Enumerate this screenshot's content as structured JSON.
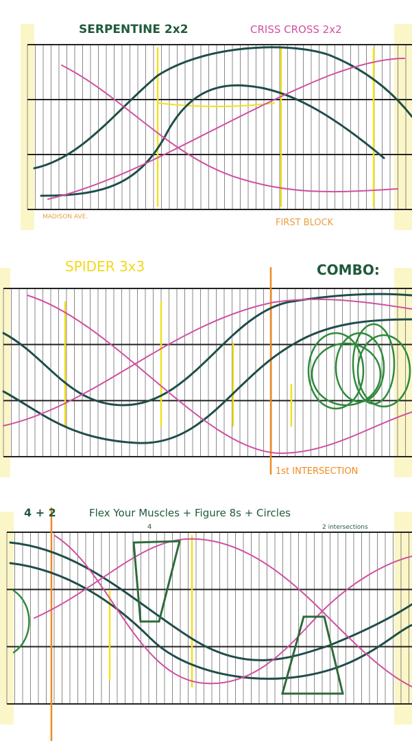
{
  "panels": [
    {
      "titles": [
        "SERPENTINE 2x2",
        "CRISS CROSS 2x2"
      ],
      "labels": [
        "MADISON AVE.",
        "FIRST BLOCK"
      ]
    },
    {
      "titles": [
        "SPIDER 3x3",
        "COMBO:"
      ],
      "labels": [
        "1st INTERSECTION"
      ]
    },
    {
      "titles": [
        "4 + 2",
        "Flex Your Muscles + Figure 8s + Circles"
      ],
      "labels": [
        "4",
        "2 intersections"
      ]
    }
  ]
}
